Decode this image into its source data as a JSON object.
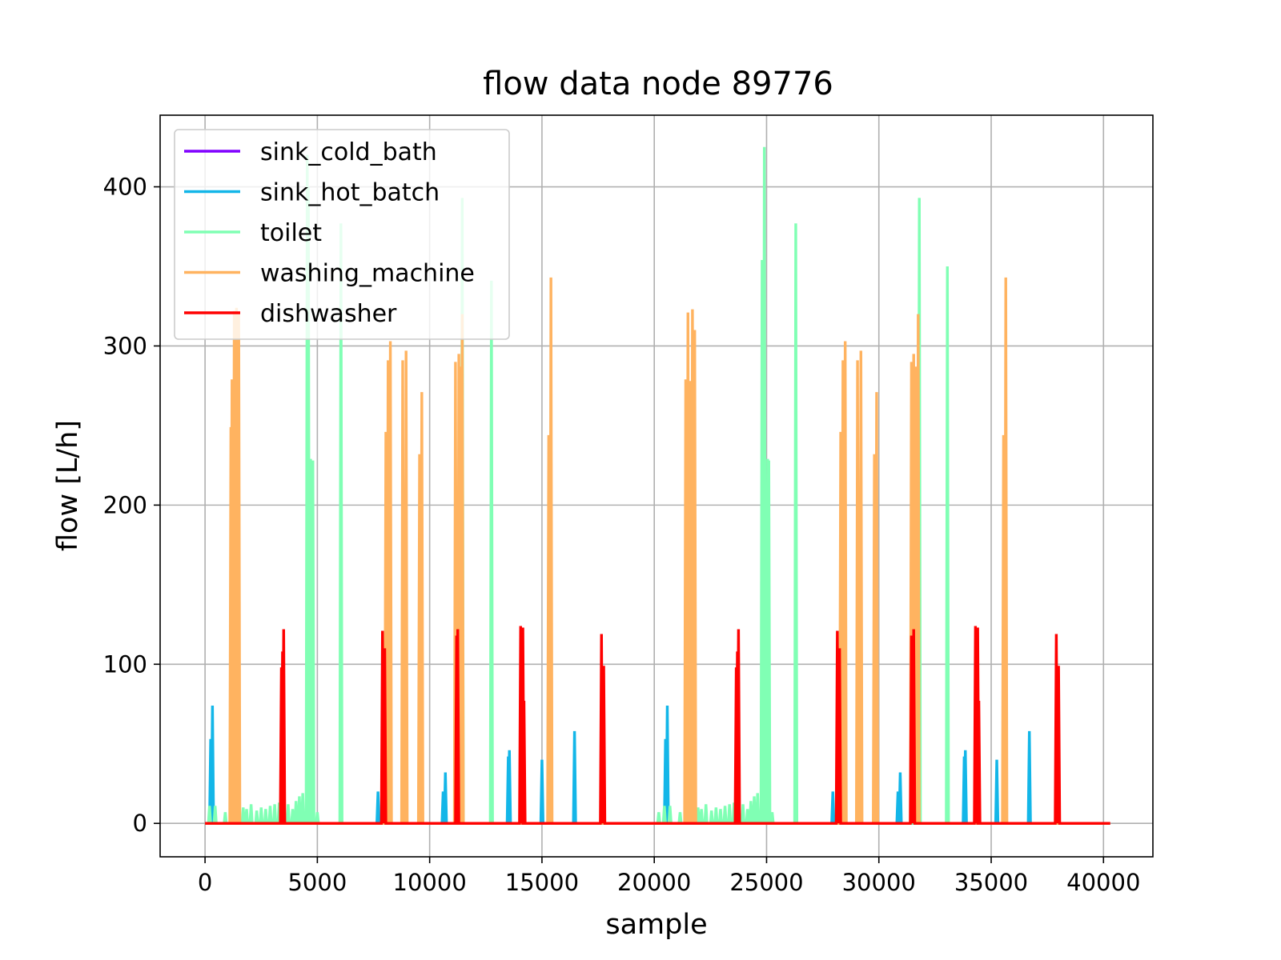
{
  "chart_data": {
    "type": "line",
    "title": "flow data node 89776",
    "xlabel": "sample",
    "ylabel": "flow [L/h]",
    "xlim": [
      -2000,
      42200
    ],
    "ylim": [
      -21,
      445
    ],
    "xticks": [
      0,
      5000,
      10000,
      15000,
      20000,
      25000,
      30000,
      35000,
      40000
    ],
    "yticks": [
      0,
      100,
      200,
      300,
      400
    ],
    "grid": true,
    "legend_position": "upper-left",
    "baseline_x_range": [
      0,
      40300
    ],
    "series": [
      {
        "name": "sink_cold_bath",
        "color": "#8000ff",
        "spikes": []
      },
      {
        "name": "sink_hot_batch",
        "color": "#13b6e8",
        "spikes": [
          {
            "x": 250,
            "y": 53
          },
          {
            "x": 330,
            "y": 74
          },
          {
            "x": 7700,
            "y": 20
          },
          {
            "x": 10600,
            "y": 20
          },
          {
            "x": 10700,
            "y": 32
          },
          {
            "x": 13500,
            "y": 42
          },
          {
            "x": 13550,
            "y": 46
          },
          {
            "x": 15000,
            "y": 40
          },
          {
            "x": 16450,
            "y": 58
          },
          {
            "x": 20500,
            "y": 53
          },
          {
            "x": 20580,
            "y": 74
          },
          {
            "x": 27950,
            "y": 20
          },
          {
            "x": 30850,
            "y": 20
          },
          {
            "x": 30950,
            "y": 32
          },
          {
            "x": 33800,
            "y": 42
          },
          {
            "x": 33850,
            "y": 46
          },
          {
            "x": 35250,
            "y": 40
          },
          {
            "x": 36700,
            "y": 58
          }
        ]
      },
      {
        "name": "toilet",
        "color": "#80ffb4",
        "spikes": [
          {
            "x": 200,
            "y": 11
          },
          {
            "x": 450,
            "y": 11
          },
          {
            "x": 900,
            "y": 7
          },
          {
            "x": 1700,
            "y": 10
          },
          {
            "x": 1850,
            "y": 9
          },
          {
            "x": 2050,
            "y": 12
          },
          {
            "x": 2300,
            "y": 8
          },
          {
            "x": 2500,
            "y": 10
          },
          {
            "x": 2700,
            "y": 9
          },
          {
            "x": 2900,
            "y": 11
          },
          {
            "x": 3100,
            "y": 12
          },
          {
            "x": 3300,
            "y": 13
          },
          {
            "x": 3700,
            "y": 12
          },
          {
            "x": 3900,
            "y": 9
          },
          {
            "x": 4050,
            "y": 14
          },
          {
            "x": 4200,
            "y": 17
          },
          {
            "x": 4350,
            "y": 19
          },
          {
            "x": 4550,
            "y": 420
          },
          {
            "x": 4600,
            "y": 400
          },
          {
            "x": 4700,
            "y": 229
          },
          {
            "x": 4800,
            "y": 228
          },
          {
            "x": 5000,
            "y": 7
          },
          {
            "x": 6050,
            "y": 377
          },
          {
            "x": 11450,
            "y": 393
          },
          {
            "x": 12750,
            "y": 341
          },
          {
            "x": 20200,
            "y": 7
          },
          {
            "x": 20450,
            "y": 11
          },
          {
            "x": 20700,
            "y": 11
          },
          {
            "x": 21150,
            "y": 7
          },
          {
            "x": 21950,
            "y": 10
          },
          {
            "x": 22100,
            "y": 9
          },
          {
            "x": 22300,
            "y": 12
          },
          {
            "x": 22550,
            "y": 8
          },
          {
            "x": 22750,
            "y": 10
          },
          {
            "x": 22950,
            "y": 9
          },
          {
            "x": 23150,
            "y": 11
          },
          {
            "x": 23350,
            "y": 12
          },
          {
            "x": 23550,
            "y": 13
          },
          {
            "x": 23950,
            "y": 12
          },
          {
            "x": 24150,
            "y": 9
          },
          {
            "x": 24300,
            "y": 14
          },
          {
            "x": 24450,
            "y": 17
          },
          {
            "x": 24600,
            "y": 19
          },
          {
            "x": 24800,
            "y": 354
          },
          {
            "x": 24900,
            "y": 425
          },
          {
            "x": 25050,
            "y": 229
          },
          {
            "x": 25100,
            "y": 228
          },
          {
            "x": 25250,
            "y": 7
          },
          {
            "x": 26300,
            "y": 377
          },
          {
            "x": 31800,
            "y": 393
          },
          {
            "x": 33050,
            "y": 350
          }
        ]
      },
      {
        "name": "washing_machine",
        "color": "#ffb360",
        "spikes": [
          {
            "x": 1150,
            "y": 249
          },
          {
            "x": 1200,
            "y": 279
          },
          {
            "x": 1250,
            "y": 278
          },
          {
            "x": 1300,
            "y": 322
          },
          {
            "x": 1350,
            "y": 294
          },
          {
            "x": 1400,
            "y": 324
          },
          {
            "x": 1450,
            "y": 311
          },
          {
            "x": 1500,
            "y": 320
          },
          {
            "x": 8050,
            "y": 246
          },
          {
            "x": 8150,
            "y": 291
          },
          {
            "x": 8250,
            "y": 303
          },
          {
            "x": 8800,
            "y": 291
          },
          {
            "x": 8950,
            "y": 297
          },
          {
            "x": 9550,
            "y": 232
          },
          {
            "x": 9650,
            "y": 271
          },
          {
            "x": 11150,
            "y": 290
          },
          {
            "x": 11300,
            "y": 295
          },
          {
            "x": 11400,
            "y": 287
          },
          {
            "x": 11450,
            "y": 320
          },
          {
            "x": 15300,
            "y": 244
          },
          {
            "x": 15400,
            "y": 343
          },
          {
            "x": 21400,
            "y": 279
          },
          {
            "x": 21500,
            "y": 321
          },
          {
            "x": 21600,
            "y": 278
          },
          {
            "x": 21700,
            "y": 323
          },
          {
            "x": 21800,
            "y": 310
          },
          {
            "x": 28300,
            "y": 246
          },
          {
            "x": 28400,
            "y": 291
          },
          {
            "x": 28500,
            "y": 303
          },
          {
            "x": 29050,
            "y": 291
          },
          {
            "x": 29200,
            "y": 297
          },
          {
            "x": 29800,
            "y": 232
          },
          {
            "x": 29900,
            "y": 271
          },
          {
            "x": 31450,
            "y": 290
          },
          {
            "x": 31550,
            "y": 295
          },
          {
            "x": 31650,
            "y": 287
          },
          {
            "x": 31750,
            "y": 320
          },
          {
            "x": 35550,
            "y": 244
          },
          {
            "x": 35650,
            "y": 343
          }
        ]
      },
      {
        "name": "dishwasher",
        "color": "#ff0000",
        "spikes": [
          {
            "x": 3400,
            "y": 98
          },
          {
            "x": 3450,
            "y": 108
          },
          {
            "x": 3500,
            "y": 122
          },
          {
            "x": 7900,
            "y": 121
          },
          {
            "x": 8000,
            "y": 110
          },
          {
            "x": 11200,
            "y": 118
          },
          {
            "x": 11250,
            "y": 122
          },
          {
            "x": 14050,
            "y": 124
          },
          {
            "x": 14150,
            "y": 123
          },
          {
            "x": 14200,
            "y": 77
          },
          {
            "x": 17650,
            "y": 119
          },
          {
            "x": 17750,
            "y": 99
          },
          {
            "x": 23650,
            "y": 98
          },
          {
            "x": 23700,
            "y": 108
          },
          {
            "x": 23750,
            "y": 122
          },
          {
            "x": 28150,
            "y": 121
          },
          {
            "x": 28250,
            "y": 110
          },
          {
            "x": 31450,
            "y": 118
          },
          {
            "x": 31550,
            "y": 122
          },
          {
            "x": 34300,
            "y": 124
          },
          {
            "x": 34400,
            "y": 123
          },
          {
            "x": 34450,
            "y": 77
          },
          {
            "x": 37900,
            "y": 119
          },
          {
            "x": 38000,
            "y": 99
          }
        ]
      }
    ]
  }
}
